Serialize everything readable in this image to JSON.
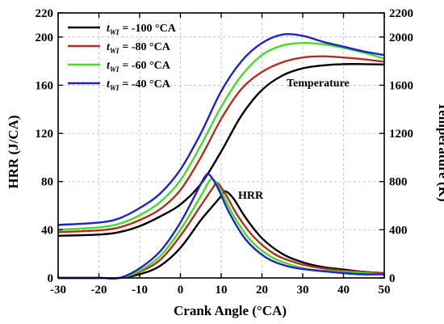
{
  "chart_data": {
    "type": "line",
    "xlabel": "Crank Angle (°CA)",
    "ylabel": "HRR (J/CA)",
    "y2label": "Temperature (K)",
    "xlim": [
      -30,
      50
    ],
    "ylim": [
      0,
      220
    ],
    "y2lim": [
      0,
      2200
    ],
    "xticks": [
      "-30",
      "-20",
      "-10",
      "0",
      "10",
      "20",
      "30",
      "40",
      "50"
    ],
    "yticks": [
      "0",
      "40",
      "80",
      "120",
      "160",
      "200",
      "220"
    ],
    "y2ticks": [
      "0",
      "400",
      "800",
      "1200",
      "1600",
      "2000",
      "2200"
    ],
    "grid": true,
    "legend_position": "top-left",
    "annotations": {
      "temperature": "Temperature",
      "hrr": "HRR"
    },
    "legend_var": "t",
    "legend_sub": "WI",
    "series": [
      {
        "name": "= -100 °CA",
        "color": "#000000",
        "hrr": [
          [
            -30,
            0
          ],
          [
            -20,
            0
          ],
          [
            -15,
            0
          ],
          [
            -10,
            3
          ],
          [
            -5,
            10
          ],
          [
            0,
            25
          ],
          [
            5,
            48
          ],
          [
            8,
            60
          ],
          [
            10,
            68
          ],
          [
            11,
            72
          ],
          [
            13,
            66
          ],
          [
            16,
            50
          ],
          [
            20,
            33
          ],
          [
            25,
            20
          ],
          [
            30,
            13
          ],
          [
            35,
            9
          ],
          [
            40,
            7
          ],
          [
            45,
            5
          ],
          [
            50,
            4
          ]
        ],
        "temperature": [
          [
            -30,
            350
          ],
          [
            -20,
            360
          ],
          [
            -15,
            380
          ],
          [
            -10,
            430
          ],
          [
            -5,
            510
          ],
          [
            0,
            610
          ],
          [
            5,
            780
          ],
          [
            10,
            1050
          ],
          [
            15,
            1350
          ],
          [
            20,
            1560
          ],
          [
            25,
            1680
          ],
          [
            30,
            1740
          ],
          [
            35,
            1765
          ],
          [
            40,
            1775
          ],
          [
            45,
            1775
          ],
          [
            50,
            1772
          ]
        ]
      },
      {
        "name": "= -80 °CA",
        "color": "#b03020",
        "hrr": [
          [
            -30,
            0
          ],
          [
            -20,
            0
          ],
          [
            -15,
            0
          ],
          [
            -10,
            5
          ],
          [
            -5,
            15
          ],
          [
            0,
            35
          ],
          [
            5,
            60
          ],
          [
            8,
            75
          ],
          [
            9,
            79
          ],
          [
            11,
            70
          ],
          [
            14,
            52
          ],
          [
            18,
            34
          ],
          [
            23,
            20
          ],
          [
            28,
            13
          ],
          [
            33,
            9
          ],
          [
            40,
            6
          ],
          [
            45,
            5
          ],
          [
            50,
            4
          ]
        ],
        "temperature": [
          [
            -30,
            380
          ],
          [
            -20,
            395
          ],
          [
            -15,
            420
          ],
          [
            -10,
            480
          ],
          [
            -5,
            570
          ],
          [
            0,
            730
          ],
          [
            5,
            1000
          ],
          [
            10,
            1320
          ],
          [
            15,
            1570
          ],
          [
            20,
            1710
          ],
          [
            25,
            1790
          ],
          [
            30,
            1830
          ],
          [
            35,
            1840
          ],
          [
            40,
            1830
          ],
          [
            45,
            1815
          ],
          [
            50,
            1795
          ]
        ]
      },
      {
        "name": "= -60 °CA",
        "color": "#44dd22",
        "hrr": [
          [
            -30,
            0
          ],
          [
            -20,
            0
          ],
          [
            -15,
            0
          ],
          [
            -10,
            6
          ],
          [
            -5,
            18
          ],
          [
            0,
            40
          ],
          [
            5,
            68
          ],
          [
            7,
            80
          ],
          [
            8,
            82
          ],
          [
            10,
            72
          ],
          [
            13,
            52
          ],
          [
            17,
            32
          ],
          [
            22,
            18
          ],
          [
            27,
            11
          ],
          [
            32,
            7
          ],
          [
            40,
            5
          ],
          [
            45,
            4
          ],
          [
            50,
            3
          ]
        ],
        "temperature": [
          [
            -30,
            400
          ],
          [
            -20,
            420
          ],
          [
            -15,
            450
          ],
          [
            -10,
            520
          ],
          [
            -5,
            630
          ],
          [
            0,
            810
          ],
          [
            5,
            1100
          ],
          [
            10,
            1420
          ],
          [
            15,
            1680
          ],
          [
            20,
            1850
          ],
          [
            25,
            1930
          ],
          [
            30,
            1950
          ],
          [
            35,
            1940
          ],
          [
            40,
            1910
          ],
          [
            45,
            1870
          ],
          [
            50,
            1820
          ]
        ]
      },
      {
        "name": "= -40 °CA",
        "color": "#1f22cc",
        "hrr": [
          [
            -30,
            0
          ],
          [
            -20,
            0
          ],
          [
            -15,
            0
          ],
          [
            -10,
            8
          ],
          [
            -5,
            22
          ],
          [
            0,
            46
          ],
          [
            5,
            78
          ],
          [
            6,
            84
          ],
          [
            7,
            86
          ],
          [
            9,
            76
          ],
          [
            12,
            54
          ],
          [
            16,
            32
          ],
          [
            21,
            17
          ],
          [
            26,
            10
          ],
          [
            31,
            7
          ],
          [
            40,
            4
          ],
          [
            45,
            3
          ],
          [
            50,
            3
          ]
        ],
        "temperature": [
          [
            -30,
            440
          ],
          [
            -20,
            460
          ],
          [
            -15,
            495
          ],
          [
            -10,
            580
          ],
          [
            -5,
            700
          ],
          [
            0,
            900
          ],
          [
            5,
            1200
          ],
          [
            10,
            1550
          ],
          [
            15,
            1800
          ],
          [
            20,
            1950
          ],
          [
            25,
            2020
          ],
          [
            30,
            2010
          ],
          [
            35,
            1960
          ],
          [
            40,
            1920
          ],
          [
            45,
            1880
          ],
          [
            50,
            1850
          ]
        ]
      }
    ]
  }
}
